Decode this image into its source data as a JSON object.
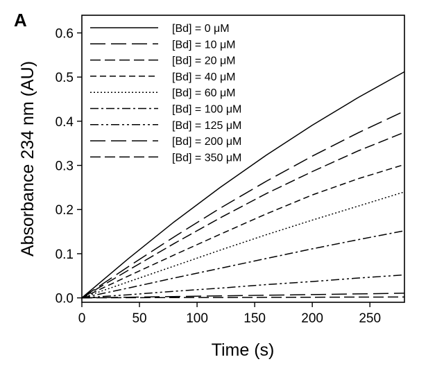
{
  "chart_data": {
    "type": "line",
    "panel_label": "A",
    "xlabel": "Time (s)",
    "ylabel": "Absorbance 234 nm (AU)",
    "xlim": [
      0,
      280
    ],
    "ylim": [
      -0.01,
      0.64
    ],
    "xticks": [
      0,
      50,
      100,
      150,
      200,
      250
    ],
    "yticks": [
      0.0,
      0.1,
      0.2,
      0.3,
      0.4,
      0.5,
      0.6
    ],
    "ytick_labels": [
      "0.0",
      "0.1",
      "0.2",
      "0.3",
      "0.4",
      "0.5",
      "0.6"
    ],
    "grid": false,
    "legend_position": "top-left",
    "x": [
      0,
      40,
      80,
      120,
      160,
      200,
      240,
      280
    ],
    "series": [
      {
        "name": "[Bd] = 0 μM",
        "style": "solid",
        "values": [
          0,
          0.088,
          0.172,
          0.25,
          0.323,
          0.391,
          0.454,
          0.512
        ]
      },
      {
        "name": "[Bd] = 10 μM",
        "style": "longdash",
        "values": [
          0,
          0.07,
          0.138,
          0.203,
          0.264,
          0.321,
          0.374,
          0.423
        ]
      },
      {
        "name": "[Bd] = 20 μM",
        "style": "dash",
        "values": [
          0,
          0.062,
          0.123,
          0.181,
          0.236,
          0.286,
          0.333,
          0.375
        ]
      },
      {
        "name": "[Bd] = 40 μM",
        "style": "shortdash",
        "values": [
          0,
          0.049,
          0.097,
          0.144,
          0.19,
          0.233,
          0.27,
          0.302
        ]
      },
      {
        "name": "[Bd] = 60 μM",
        "style": "dot",
        "values": [
          0,
          0.036,
          0.072,
          0.108,
          0.143,
          0.176,
          0.208,
          0.24
        ]
      },
      {
        "name": "[Bd] = 100 μM",
        "style": "dashdot",
        "values": [
          0,
          0.022,
          0.045,
          0.067,
          0.089,
          0.111,
          0.132,
          0.152
        ]
      },
      {
        "name": "[Bd] = 125 μM",
        "style": "dashdotdot",
        "values": [
          0,
          0.007,
          0.015,
          0.022,
          0.03,
          0.037,
          0.045,
          0.052
        ]
      },
      {
        "name": "[Bd] = 200 μM",
        "style": "longdash",
        "values": [
          0,
          0.0015,
          0.003,
          0.0045,
          0.006,
          0.0075,
          0.009,
          0.0105
        ]
      },
      {
        "name": "[Bd] = 350 μM",
        "style": "dash",
        "values": [
          0,
          0.0003,
          0.0006,
          0.0009,
          0.0012,
          0.0015,
          0.0018,
          0.002
        ]
      }
    ]
  }
}
